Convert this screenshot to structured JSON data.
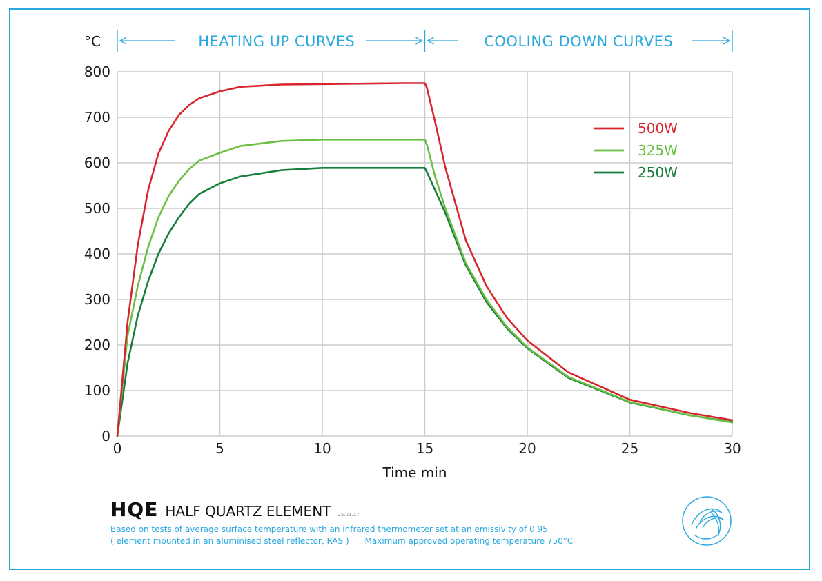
{
  "chart_data": {
    "type": "line",
    "unit_label": "°C",
    "xlabel": "Time min",
    "ylabel": "",
    "xlim": [
      0,
      30
    ],
    "ylim": [
      0,
      800
    ],
    "xticks": [
      0,
      5,
      10,
      15,
      20,
      25,
      30
    ],
    "yticks": [
      0,
      100,
      200,
      300,
      400,
      500,
      600,
      700,
      800
    ],
    "grid": true,
    "legend_position": "top-right",
    "phase_labels": [
      "HEATING UP CURVES",
      "COOLING DOWN CURVES"
    ],
    "series": [
      {
        "name": "500W",
        "color": "#d7262e",
        "x": [
          0,
          0.5,
          1,
          1.5,
          2,
          2.5,
          3,
          3.5,
          4,
          5,
          6,
          8,
          10,
          12,
          14,
          15,
          15.1,
          15.5,
          16,
          17,
          18,
          19,
          20,
          22,
          25,
          28,
          30
        ],
        "y": [
          0,
          250,
          420,
          540,
          620,
          670,
          705,
          727,
          742,
          757,
          767,
          772,
          773,
          774,
          775,
          775,
          765,
          690,
          590,
          430,
          330,
          260,
          210,
          140,
          80,
          50,
          35
        ]
      },
      {
        "name": "325W",
        "color": "#6cbf45",
        "x": [
          0,
          0.5,
          1,
          1.5,
          2,
          2.5,
          3,
          3.5,
          4,
          5,
          6,
          8,
          10,
          12,
          14,
          15,
          15.1,
          15.5,
          16,
          17,
          18,
          19,
          20,
          22,
          25,
          28,
          30
        ],
        "y": [
          0,
          220,
          330,
          415,
          480,
          527,
          560,
          586,
          605,
          622,
          637,
          648,
          651,
          651,
          651,
          651,
          640,
          570,
          500,
          380,
          300,
          240,
          195,
          130,
          75,
          45,
          30
        ]
      },
      {
        "name": "250W",
        "color": "#167d3c",
        "x": [
          0,
          0.5,
          1,
          1.5,
          2,
          2.5,
          3,
          3.5,
          4,
          5,
          6,
          8,
          10,
          12,
          14,
          15,
          15.1,
          15.5,
          16,
          17,
          18,
          19,
          20,
          22,
          25,
          28,
          30
        ],
        "y": [
          0,
          160,
          265,
          340,
          400,
          445,
          480,
          510,
          532,
          555,
          570,
          584,
          589,
          589,
          589,
          589,
          580,
          540,
          490,
          375,
          295,
          237,
          193,
          128,
          74,
          45,
          31
        ]
      }
    ]
  },
  "footer": {
    "code": "HQE",
    "name": "HALF QUARTZ ELEMENT",
    "date": "25.01.17",
    "note_line1": "Based on tests of average surface temperature with an infrared thermometer set at an emissivity of 0.95",
    "note_line2": "( element mounted in an aluminised steel reflector, RAS )      Maximum approved operating temperature 750°C"
  },
  "colors": {
    "accent": "#29a8df",
    "grid": "#cccccc"
  },
  "logo_icon": "wave-swirl-icon"
}
